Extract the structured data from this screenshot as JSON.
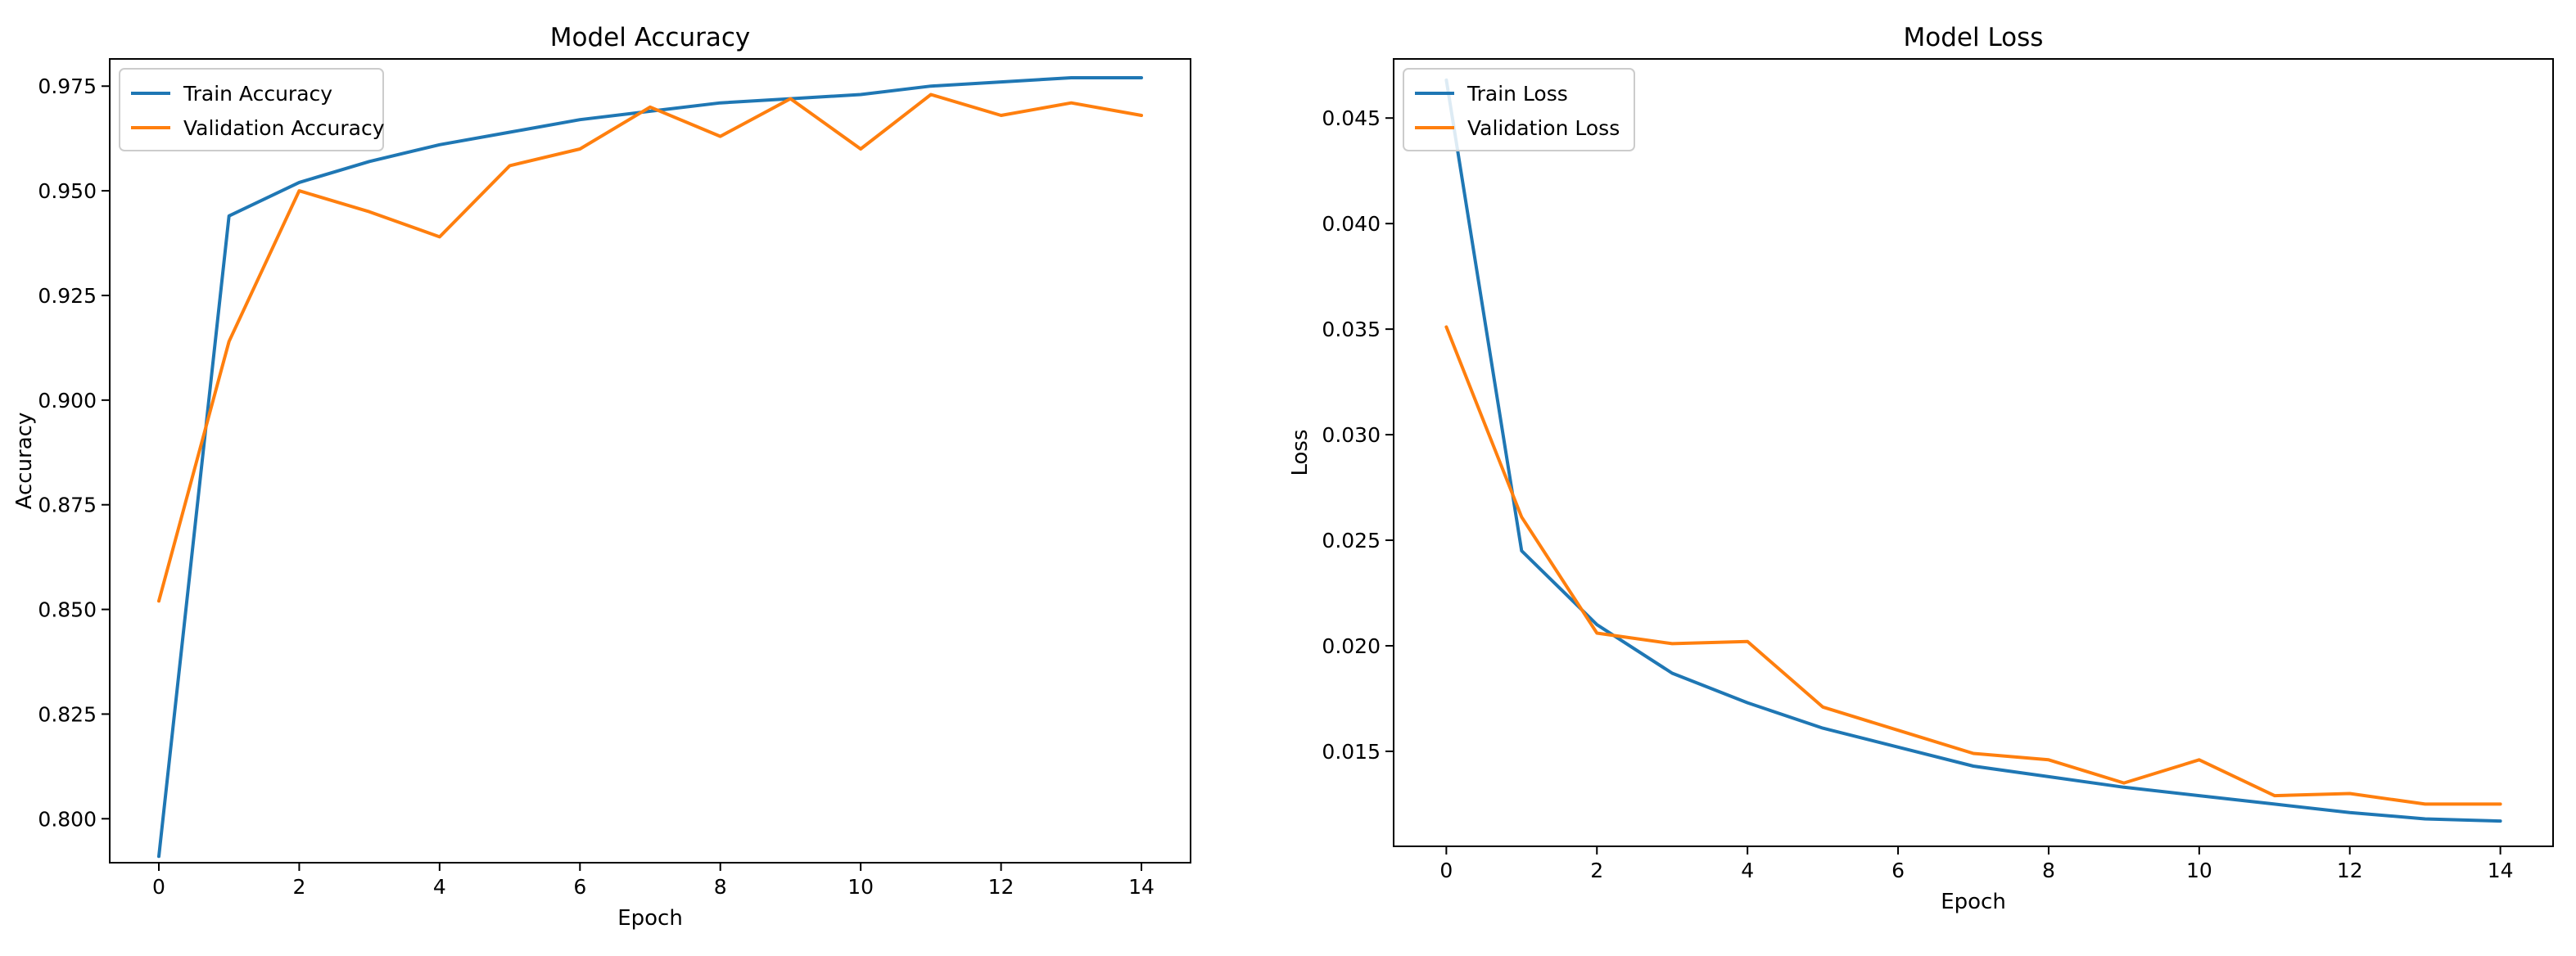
{
  "colors": {
    "train": "#1f77b4",
    "validation": "#ff7f0e",
    "axes": "#000000",
    "legend_border": "#cccccc"
  },
  "chart_data": [
    {
      "type": "line",
      "title": "Model Accuracy",
      "xlabel": "Epoch",
      "ylabel": "Accuracy",
      "xlim": [
        -0.7,
        14.7
      ],
      "ylim": [
        0.7895,
        0.9815
      ],
      "x_ticks": [
        0,
        2,
        4,
        6,
        8,
        10,
        12,
        14
      ],
      "y_ticks": [
        0.8,
        0.825,
        0.85,
        0.875,
        0.9,
        0.925,
        0.95,
        0.975
      ],
      "y_tick_labels": [
        "0.800",
        "0.825",
        "0.850",
        "0.875",
        "0.900",
        "0.925",
        "0.950",
        "0.975"
      ],
      "legend": "top-left",
      "grid": false,
      "x": [
        0,
        1,
        2,
        3,
        4,
        5,
        6,
        7,
        8,
        9,
        10,
        11,
        12,
        13,
        14
      ],
      "series": [
        {
          "name": "Train Accuracy",
          "color": "#1f77b4",
          "values": [
            0.791,
            0.944,
            0.952,
            0.957,
            0.961,
            0.964,
            0.967,
            0.969,
            0.971,
            0.972,
            0.973,
            0.975,
            0.976,
            0.977,
            0.977
          ]
        },
        {
          "name": "Validation Accuracy",
          "color": "#ff7f0e",
          "values": [
            0.852,
            0.914,
            0.95,
            0.945,
            0.939,
            0.956,
            0.96,
            0.97,
            0.963,
            0.972,
            0.96,
            0.973,
            0.968,
            0.971,
            0.968
          ]
        }
      ]
    },
    {
      "type": "line",
      "title": "Model Loss",
      "xlabel": "Epoch",
      "ylabel": "Loss",
      "xlim": [
        -0.7,
        14.7
      ],
      "ylim": [
        0.0105,
        0.0478
      ],
      "x_ticks": [
        0,
        2,
        4,
        6,
        8,
        10,
        12,
        14
      ],
      "y_ticks": [
        0.015,
        0.02,
        0.025,
        0.03,
        0.035,
        0.04,
        0.045
      ],
      "y_tick_labels": [
        "0.015",
        "0.020",
        "0.025",
        "0.030",
        "0.035",
        "0.040",
        "0.045"
      ],
      "legend": "top-left",
      "grid": false,
      "x": [
        0,
        1,
        2,
        3,
        4,
        5,
        6,
        7,
        8,
        9,
        10,
        11,
        12,
        13,
        14
      ],
      "series": [
        {
          "name": "Train Loss",
          "color": "#1f77b4",
          "values": [
            0.0468,
            0.0245,
            0.021,
            0.0187,
            0.0173,
            0.0161,
            0.0152,
            0.0143,
            0.0138,
            0.0133,
            0.0129,
            0.0125,
            0.0121,
            0.0118,
            0.0117
          ]
        },
        {
          "name": "Validation Loss",
          "color": "#ff7f0e",
          "values": [
            0.0351,
            0.0261,
            0.0206,
            0.0201,
            0.0202,
            0.0171,
            0.016,
            0.0149,
            0.0146,
            0.0135,
            0.0146,
            0.0129,
            0.013,
            0.0125,
            0.0125
          ]
        }
      ]
    }
  ]
}
